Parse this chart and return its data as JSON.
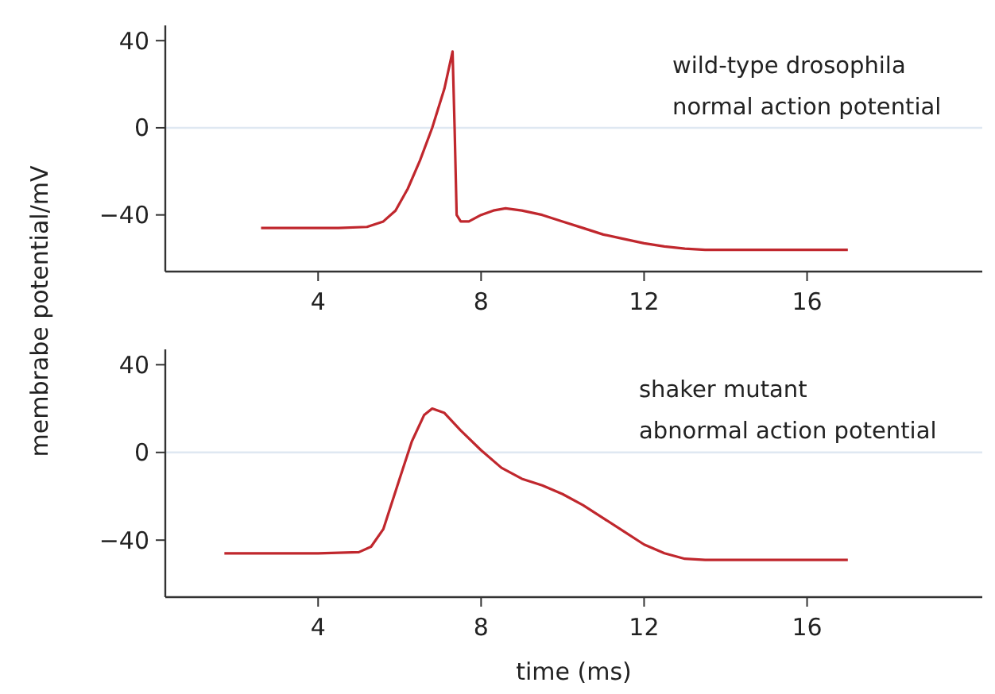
{
  "chart_data": [
    {
      "type": "line",
      "ylabel": "membrabe potential/mV",
      "annotations": [
        "wild-type drosophila",
        "normal action potential"
      ],
      "xlim": [
        0.25,
        20.3
      ],
      "xticks": [
        4,
        8,
        12,
        16
      ],
      "ylim": [
        -66,
        47
      ],
      "yticks": [
        40,
        0,
        -40
      ],
      "grid": false,
      "marker": "none",
      "line_style": "solid",
      "ref_lines": [
        {
          "axis": "y",
          "value": 0,
          "color": "#dfe8f2"
        }
      ],
      "series": [
        {
          "color": "#c0272d",
          "x": [
            2.6,
            3.5,
            4.5,
            5.2,
            5.6,
            5.9,
            6.2,
            6.5,
            6.8,
            7.1,
            7.3,
            7.35,
            7.4,
            7.5,
            7.7,
            8.0,
            8.3,
            8.6,
            9.0,
            9.5,
            10,
            10.5,
            11,
            11.5,
            12,
            12.5,
            13,
            13.5,
            14,
            15,
            16,
            17
          ],
          "values": [
            -46,
            -46,
            -46,
            -45.5,
            -43,
            -38,
            -28,
            -15,
            0,
            18,
            35,
            0,
            -40,
            -43,
            -43,
            -40,
            -38,
            -37,
            -38,
            -40,
            -43,
            -46,
            -49,
            -51,
            -53,
            -54.5,
            -55.5,
            -56,
            -56,
            -56,
            -56,
            -56
          ]
        }
      ]
    },
    {
      "type": "line",
      "xlabel": "time (ms)",
      "annotations": [
        "shaker mutant",
        "abnormal action potential"
      ],
      "xlim": [
        0.25,
        20.3
      ],
      "xticks": [
        4,
        8,
        12,
        16
      ],
      "ylim": [
        -66,
        47
      ],
      "yticks": [
        40,
        0,
        -40
      ],
      "grid": false,
      "marker": "none",
      "line_style": "solid",
      "ref_lines": [
        {
          "axis": "y",
          "value": 0,
          "color": "#dfe8f2"
        }
      ],
      "series": [
        {
          "color": "#c0272d",
          "x": [
            1.7,
            3,
            4,
            5,
            5.3,
            5.6,
            6,
            6.3,
            6.6,
            6.8,
            7.1,
            7.5,
            8,
            8.5,
            9,
            9.5,
            10,
            10.5,
            11,
            11.5,
            12,
            12.5,
            13,
            13.5,
            15,
            17
          ],
          "values": [
            -46,
            -46,
            -46,
            -45.5,
            -43,
            -35,
            -12,
            5,
            17,
            20,
            18,
            10,
            1,
            -7,
            -12,
            -15,
            -19,
            -24,
            -30,
            -36,
            -42,
            -46,
            -48.5,
            -49,
            -49,
            -49
          ]
        }
      ]
    }
  ]
}
